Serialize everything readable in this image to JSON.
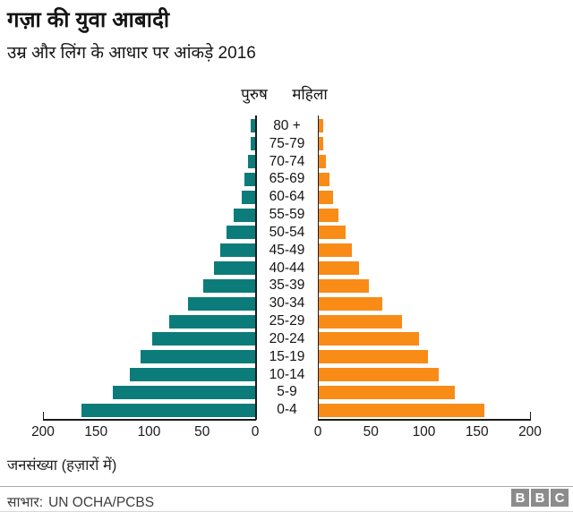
{
  "header": {
    "title": "गज़ा की युवा आबादी",
    "subtitle": "उम्र और लिंग के आधार पर आंकड़े 2016"
  },
  "legend": {
    "male": "पुरुष",
    "female": "महिला"
  },
  "chart_data": {
    "type": "bar",
    "variant": "population-pyramid",
    "title": "गज़ा की युवा आबादी",
    "subtitle": "उम्र और लिंग के आधार पर आंकड़े 2016",
    "unit_caption": "जनसंख्या (हज़ारों में)",
    "year": "2016",
    "categories": [
      "80 +",
      "75-79",
      "70-74",
      "65-69",
      "60-64",
      "55-59",
      "50-54",
      "45-49",
      "40-44",
      "35-39",
      "30-34",
      "25-29",
      "20-24",
      "15-19",
      "10-14",
      "5-9",
      "0-4"
    ],
    "series": [
      {
        "name": "पुरुष",
        "side": "left",
        "color": "#0b7c7a",
        "values": [
          4,
          4,
          7,
          10,
          13,
          20,
          27,
          33,
          39,
          49,
          63,
          81,
          97,
          108,
          118,
          134,
          164
        ]
      },
      {
        "name": "महिला",
        "side": "right",
        "color": "#f98b17",
        "values": [
          5,
          5,
          8,
          11,
          14,
          19,
          26,
          32,
          39,
          48,
          61,
          79,
          95,
          104,
          114,
          129,
          157
        ]
      }
    ],
    "x_ticks_left": [
      200,
      150,
      100,
      50,
      0
    ],
    "x_ticks_right": [
      0,
      50,
      100,
      150,
      200
    ],
    "xlim": [
      0,
      200
    ],
    "grid": false,
    "legend_position": "top-center"
  },
  "footer": {
    "axis_caption": "जनसंख्या (हज़ारों में)",
    "source_label": "साभार:",
    "source": "UN OCHA/PCBS",
    "logo_letters": [
      "B",
      "B",
      "C"
    ]
  },
  "colors": {
    "male": "#0b7c7a",
    "female": "#f98b17",
    "axis": "#1a1a1a",
    "logo_bg": "#8c8c8c"
  }
}
